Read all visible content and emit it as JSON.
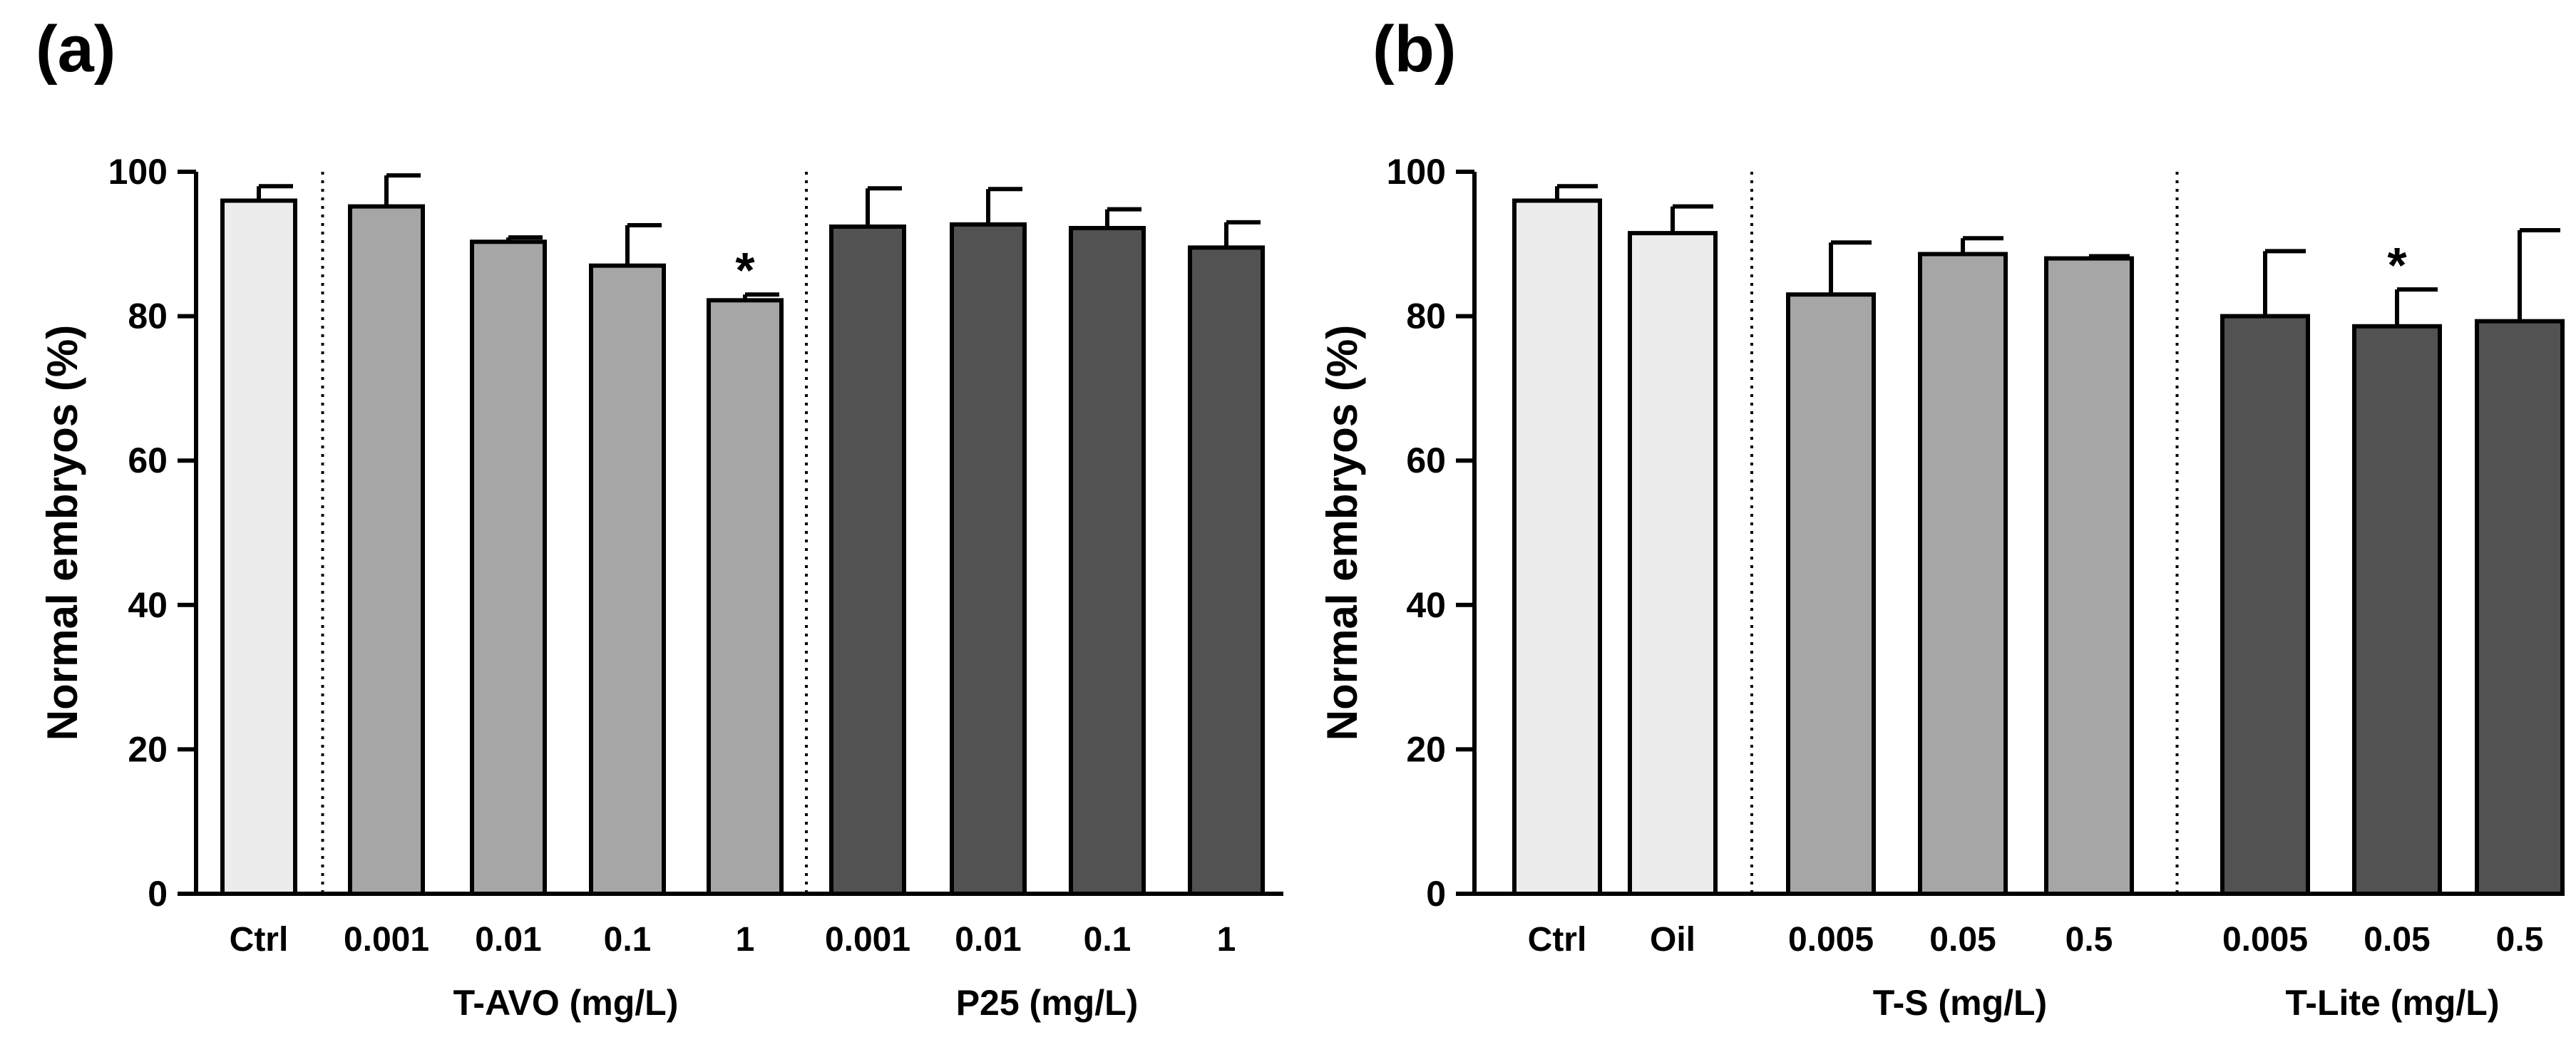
{
  "chart_data": [
    {
      "panel_label": "(a)",
      "type": "bar",
      "ylabel": "Normal embryos (%)",
      "ylim": [
        0,
        100
      ],
      "yticks": [
        0,
        20,
        40,
        60,
        80,
        100
      ],
      "groups": [
        {
          "label": "",
          "color": "#ececec",
          "bars": [
            {
              "category": "Ctrl",
              "value": 96,
              "error": 2,
              "significant": false
            }
          ]
        },
        {
          "label": "T-AVO (mg/L)",
          "color": "#a6a6a6",
          "bars": [
            {
              "category": "0.001",
              "value": 95.2,
              "error": 4.3,
              "significant": false
            },
            {
              "category": "0.01",
              "value": 90.3,
              "error": 0.6,
              "significant": false
            },
            {
              "category": "0.1",
              "value": 87,
              "error": 5.6,
              "significant": false
            },
            {
              "category": "1",
              "value": 82.2,
              "error": 0.8,
              "significant": true
            }
          ]
        },
        {
          "label": "P25 (mg/L)",
          "color": "#525252",
          "bars": [
            {
              "category": "0.001",
              "value": 92.4,
              "error": 5.3,
              "significant": false
            },
            {
              "category": "0.01",
              "value": 92.7,
              "error": 4.9,
              "significant": false
            },
            {
              "category": "0.1",
              "value": 92.2,
              "error": 2.6,
              "significant": false
            },
            {
              "category": "1",
              "value": 89.5,
              "error": 3.5,
              "significant": false
            }
          ]
        }
      ],
      "significance_marker": "*"
    },
    {
      "panel_label": "(b)",
      "type": "bar",
      "ylabel": "Normal embryos (%)",
      "ylim": [
        0,
        100
      ],
      "yticks": [
        0,
        20,
        40,
        60,
        80,
        100
      ],
      "groups": [
        {
          "label": "",
          "color": "#ececec",
          "bars": [
            {
              "category": "Ctrl",
              "value": 96,
              "error": 2,
              "significant": false
            },
            {
              "category": "Oil",
              "value": 91.5,
              "error": 3.7,
              "significant": false
            }
          ]
        },
        {
          "label": "T-S (mg/L)",
          "color": "#a6a6a6",
          "bars": [
            {
              "category": "0.005",
              "value": 83,
              "error": 7.2,
              "significant": false
            },
            {
              "category": "0.05",
              "value": 88.6,
              "error": 2.2,
              "significant": false
            },
            {
              "category": "0.5",
              "value": 88,
              "error": 0.3,
              "significant": false
            }
          ]
        },
        {
          "label": "T-Lite (mg/L)",
          "color": "#525252",
          "bars": [
            {
              "category": "0.005",
              "value": 80,
              "error": 9,
              "significant": false
            },
            {
              "category": "0.05",
              "value": 78.6,
              "error": 5.1,
              "significant": true
            },
            {
              "category": "0.5",
              "value": 79.3,
              "error": 12.6,
              "significant": false
            }
          ]
        }
      ],
      "significance_marker": "*"
    }
  ]
}
